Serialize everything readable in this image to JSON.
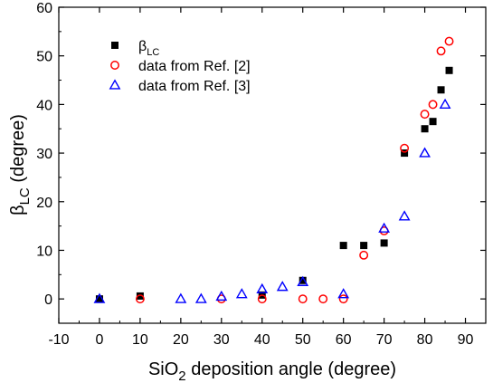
{
  "chart_data": {
    "type": "scatter",
    "xlabel": {
      "main": "SiO",
      "sub": "2",
      "rest": " deposition angle (degree)"
    },
    "ylabel": {
      "main": "β",
      "sub": "LC",
      "rest": " (degree)"
    },
    "xlim": [
      -10,
      95
    ],
    "ylim": [
      -5,
      60
    ],
    "x_ticks": [
      -10,
      0,
      10,
      20,
      30,
      40,
      50,
      60,
      70,
      80,
      90
    ],
    "y_ticks": [
      0,
      10,
      20,
      30,
      40,
      50,
      60
    ],
    "grid": false,
    "legend_position": "top-left",
    "series": [
      {
        "legend_main": "β",
        "legend_sub": "LC",
        "marker": "filled-square",
        "color": "#000000",
        "points": [
          [
            0,
            0
          ],
          [
            10,
            0.6
          ],
          [
            40,
            0.8
          ],
          [
            50,
            3.8
          ],
          [
            60,
            11
          ],
          [
            65,
            11
          ],
          [
            70,
            11.5
          ],
          [
            75,
            30
          ],
          [
            80,
            35
          ],
          [
            82,
            36.5
          ],
          [
            84,
            43
          ],
          [
            86,
            47
          ]
        ]
      },
      {
        "legend_main": "data from Ref. [2]",
        "legend_sub": "",
        "marker": "open-circle",
        "color": "#ff0000",
        "points": [
          [
            10,
            0
          ],
          [
            30,
            0
          ],
          [
            40,
            0
          ],
          [
            50,
            0
          ],
          [
            55,
            0
          ],
          [
            60,
            0
          ],
          [
            65,
            9
          ],
          [
            70,
            14
          ],
          [
            75,
            31
          ],
          [
            80,
            38
          ],
          [
            82,
            40
          ],
          [
            84,
            51
          ],
          [
            86,
            53
          ]
        ]
      },
      {
        "legend_main": "data from Ref. [3]",
        "legend_sub": "",
        "marker": "open-triangle",
        "color": "#0000ff",
        "points": [
          [
            0,
            0
          ],
          [
            20,
            0
          ],
          [
            25,
            0
          ],
          [
            30,
            0.5
          ],
          [
            35,
            1
          ],
          [
            40,
            2
          ],
          [
            45,
            2.5
          ],
          [
            50,
            3.5
          ],
          [
            60,
            1
          ],
          [
            70,
            14.5
          ],
          [
            75,
            17
          ],
          [
            80,
            30
          ],
          [
            85,
            40
          ]
        ]
      }
    ]
  }
}
